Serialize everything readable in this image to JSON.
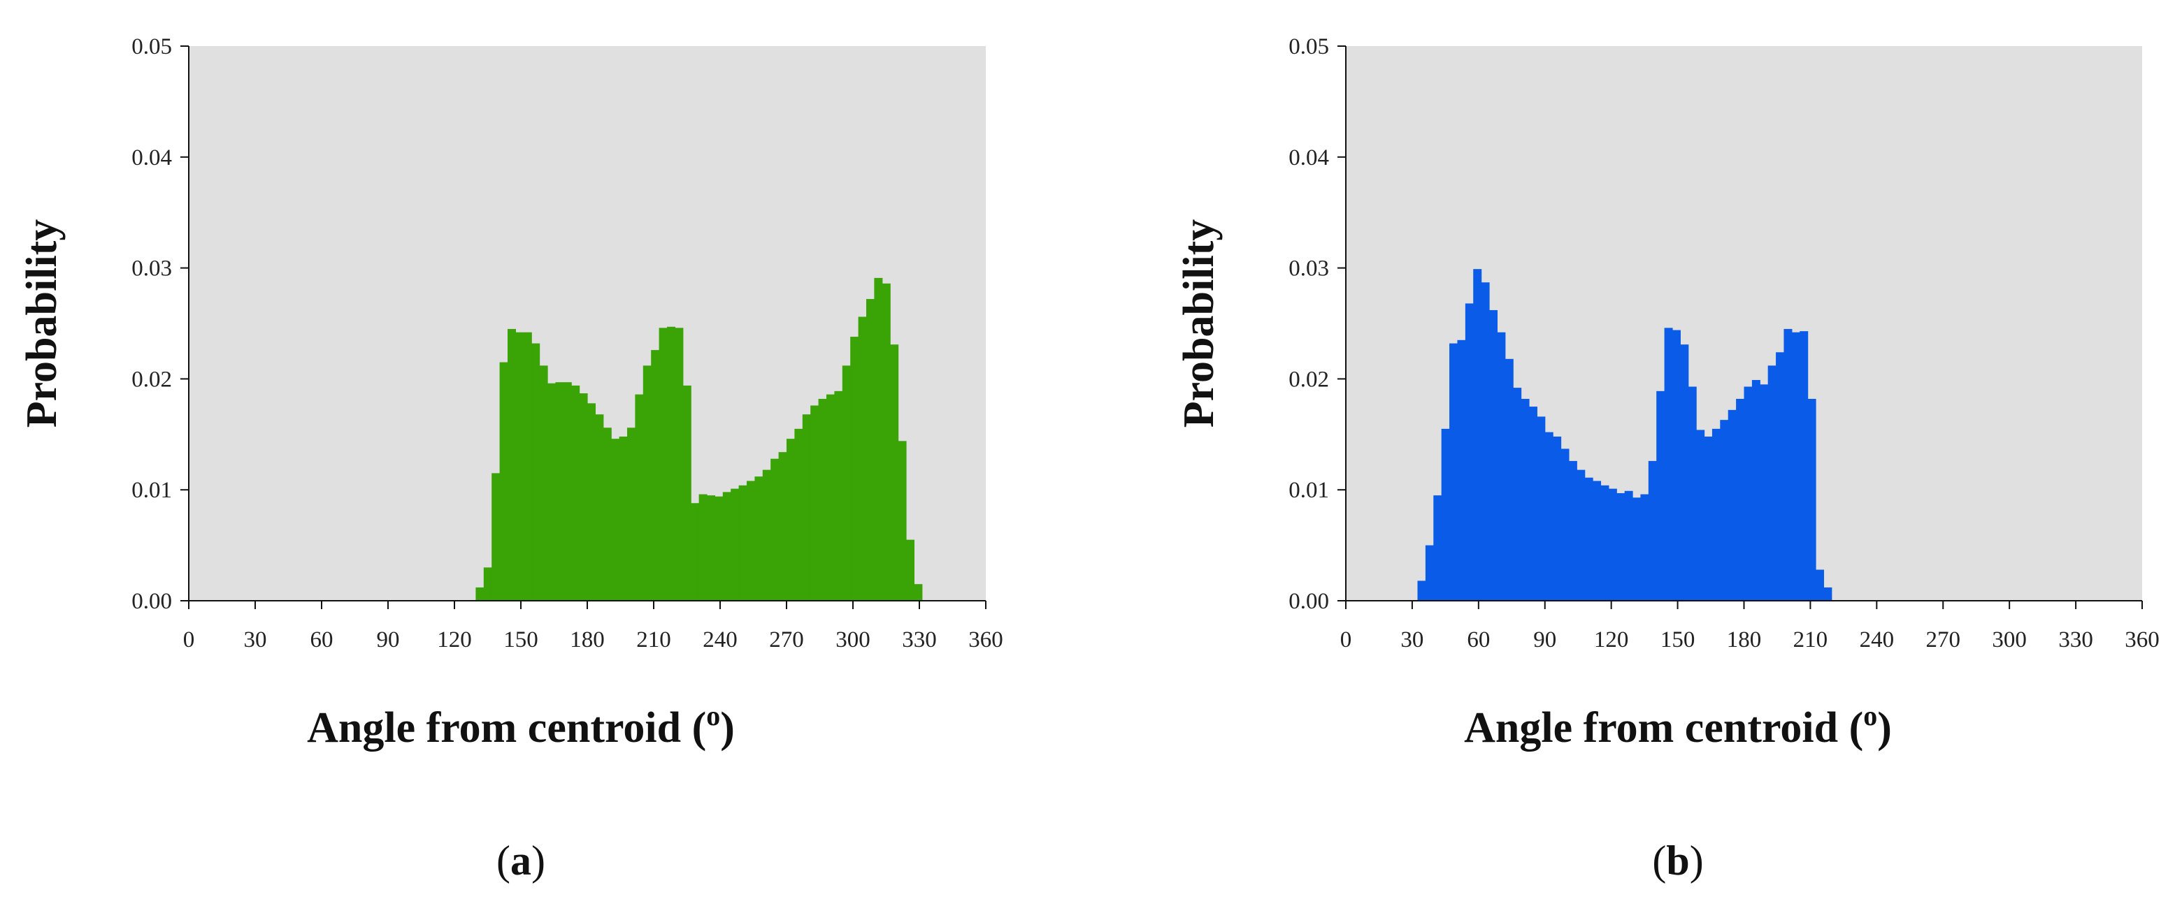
{
  "chart_data": [
    {
      "type": "bar",
      "panel_label": "(a)",
      "panel_label_letter": "a",
      "xlabel": "Angle from centroid",
      "xlabel_unit": "o",
      "ylabel": "Probability",
      "xlim": [
        0,
        360
      ],
      "ylim": [
        0,
        0.05
      ],
      "x_ticks": [
        "0",
        "30",
        "60",
        "90",
        "120",
        "150",
        "180",
        "210",
        "240",
        "270",
        "300",
        "330",
        "360"
      ],
      "y_ticks": [
        "0.00",
        "0.01",
        "0.02",
        "0.03",
        "0.04",
        "0.05"
      ],
      "grid": false,
      "background_color": "#e0e0e0",
      "bar_color": "#3aa305",
      "bin_width": 3.6,
      "bin_start": 129.6,
      "values": [
        0.0012,
        0.003,
        0.0115,
        0.0215,
        0.0245,
        0.0242,
        0.0242,
        0.0232,
        0.0212,
        0.0196,
        0.0197,
        0.0197,
        0.0194,
        0.0187,
        0.0178,
        0.0168,
        0.0156,
        0.0146,
        0.0148,
        0.0156,
        0.0186,
        0.0212,
        0.0226,
        0.0246,
        0.0247,
        0.0246,
        0.0194,
        0.0088,
        0.0096,
        0.0095,
        0.0094,
        0.0098,
        0.0101,
        0.0104,
        0.0108,
        0.0112,
        0.0118,
        0.0128,
        0.0134,
        0.0146,
        0.0155,
        0.0168,
        0.0176,
        0.0182,
        0.0186,
        0.0189,
        0.0212,
        0.0238,
        0.0256,
        0.0272,
        0.0291,
        0.0286,
        0.0231,
        0.0144,
        0.0055,
        0.0015
      ]
    },
    {
      "type": "bar",
      "panel_label": "(b)",
      "panel_label_letter": "b",
      "xlabel": "Angle from centroid",
      "xlabel_unit": "o",
      "ylabel": "Probability",
      "xlim": [
        0,
        360
      ],
      "ylim": [
        0,
        0.05
      ],
      "x_ticks": [
        "0",
        "30",
        "60",
        "90",
        "120",
        "150",
        "180",
        "210",
        "240",
        "270",
        "300",
        "330",
        "360"
      ],
      "y_ticks": [
        "0.00",
        "0.01",
        "0.02",
        "0.03",
        "0.04",
        "0.05"
      ],
      "grid": false,
      "background_color": "#e0e0e0",
      "bar_color": "#0a5ce8",
      "bin_width": 3.6,
      "bin_start": 32.4,
      "values": [
        0.0018,
        0.005,
        0.0095,
        0.0155,
        0.0232,
        0.0235,
        0.0268,
        0.0299,
        0.0287,
        0.0262,
        0.0242,
        0.0218,
        0.0192,
        0.0182,
        0.0175,
        0.0166,
        0.0152,
        0.0148,
        0.0137,
        0.0126,
        0.0118,
        0.0111,
        0.0108,
        0.0104,
        0.0101,
        0.0097,
        0.0099,
        0.0093,
        0.0096,
        0.0126,
        0.0189,
        0.0246,
        0.0244,
        0.0231,
        0.0193,
        0.0154,
        0.0148,
        0.0155,
        0.0163,
        0.0172,
        0.0182,
        0.0193,
        0.0199,
        0.0195,
        0.0212,
        0.0224,
        0.0245,
        0.0242,
        0.0243,
        0.0182,
        0.0028,
        0.0012
      ]
    }
  ]
}
